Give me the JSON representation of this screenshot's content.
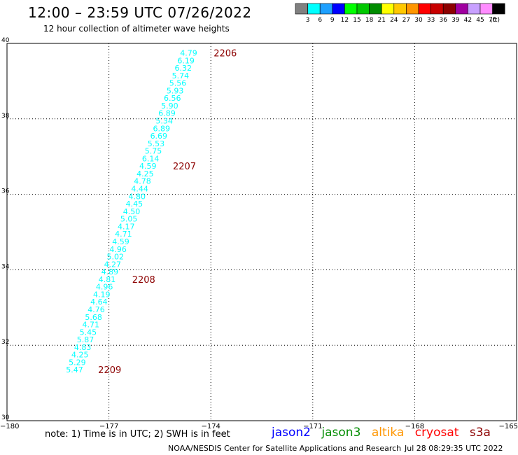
{
  "header": {
    "title": "12:00 – 23:59 UTC 07/26/2022",
    "subtitle": "12 hour collection of altimeter wave heights"
  },
  "colorbar": {
    "unit_label": "(ft)",
    "bins": [
      {
        "label": "3",
        "color": "#808080"
      },
      {
        "label": "6",
        "color": "#00ffff"
      },
      {
        "label": "9",
        "color": "#1ea0ff"
      },
      {
        "label": "12",
        "color": "#0000ff"
      },
      {
        "label": "15",
        "color": "#00ff00"
      },
      {
        "label": "18",
        "color": "#00c800"
      },
      {
        "label": "21",
        "color": "#008c00"
      },
      {
        "label": "24",
        "color": "#ffff00"
      },
      {
        "label": "27",
        "color": "#ffc800"
      },
      {
        "label": "30",
        "color": "#ff9600"
      },
      {
        "label": "33",
        "color": "#ff0000"
      },
      {
        "label": "36",
        "color": "#c80000"
      },
      {
        "label": "39",
        "color": "#8c0000"
      },
      {
        "label": "42",
        "color": "#a000a0"
      },
      {
        "label": "45",
        "color": "#c8a0ff"
      },
      {
        "label": "70",
        "color": "#ff8cff"
      },
      {
        "label": "",
        "color": "#000000"
      }
    ]
  },
  "chart_data": {
    "type": "scatter",
    "title": "12:00 – 23:59 UTC 07/26/2022",
    "xlim": [
      -180,
      -165
    ],
    "ylim": [
      30,
      40
    ],
    "x_ticks": [
      "-180",
      "-177",
      "-174",
      "-171",
      "-168",
      "-165"
    ],
    "y_ticks": [
      "30",
      "32",
      "34",
      "36",
      "38",
      "40"
    ],
    "grid": true,
    "point_color": "#00ffff",
    "points": [
      {
        "lon": -174.4,
        "lat": 39.75,
        "label": "4.79"
      },
      {
        "lon": -174.48,
        "lat": 39.55,
        "label": "6.19"
      },
      {
        "lon": -174.56,
        "lat": 39.35,
        "label": "6.32"
      },
      {
        "lon": -174.64,
        "lat": 39.15,
        "label": "5.74"
      },
      {
        "lon": -174.72,
        "lat": 38.95,
        "label": "5.56"
      },
      {
        "lon": -174.8,
        "lat": 38.75,
        "label": "5.93"
      },
      {
        "lon": -174.88,
        "lat": 38.55,
        "label": "6.56"
      },
      {
        "lon": -174.96,
        "lat": 38.35,
        "label": "5.90"
      },
      {
        "lon": -175.04,
        "lat": 38.15,
        "label": "6.89"
      },
      {
        "lon": -175.12,
        "lat": 37.95,
        "label": "5.34"
      },
      {
        "lon": -175.2,
        "lat": 37.75,
        "label": "6.89"
      },
      {
        "lon": -175.28,
        "lat": 37.55,
        "label": "6.69"
      },
      {
        "lon": -175.36,
        "lat": 37.35,
        "label": "5.53"
      },
      {
        "lon": -175.44,
        "lat": 37.15,
        "label": "5.75"
      },
      {
        "lon": -175.52,
        "lat": 36.95,
        "label": "6.14"
      },
      {
        "lon": -175.6,
        "lat": 36.75,
        "label": "4.59"
      },
      {
        "lon": -175.68,
        "lat": 36.55,
        "label": "4.25"
      },
      {
        "lon": -175.76,
        "lat": 36.35,
        "label": "4.78"
      },
      {
        "lon": -175.84,
        "lat": 36.15,
        "label": "4.44"
      },
      {
        "lon": -175.92,
        "lat": 35.95,
        "label": "4.80"
      },
      {
        "lon": -176.0,
        "lat": 35.75,
        "label": "4.45"
      },
      {
        "lon": -176.08,
        "lat": 35.55,
        "label": "4.50"
      },
      {
        "lon": -176.16,
        "lat": 35.35,
        "label": "5.05"
      },
      {
        "lon": -176.24,
        "lat": 35.15,
        "label": "4.17"
      },
      {
        "lon": -176.32,
        "lat": 34.95,
        "label": "4.71"
      },
      {
        "lon": -176.4,
        "lat": 34.75,
        "label": "4.59"
      },
      {
        "lon": -176.48,
        "lat": 34.55,
        "label": "4.96"
      },
      {
        "lon": -176.56,
        "lat": 34.35,
        "label": "5.02"
      },
      {
        "lon": -176.64,
        "lat": 34.15,
        "label": "4.27"
      },
      {
        "lon": -176.72,
        "lat": 33.95,
        "label": "4.89"
      },
      {
        "lon": -176.8,
        "lat": 33.75,
        "label": "4.81"
      },
      {
        "lon": -176.88,
        "lat": 33.55,
        "label": "4.96"
      },
      {
        "lon": -176.96,
        "lat": 33.35,
        "label": "4.19"
      },
      {
        "lon": -177.04,
        "lat": 33.15,
        "label": "4.64"
      },
      {
        "lon": -177.12,
        "lat": 32.95,
        "label": "4.76"
      },
      {
        "lon": -177.2,
        "lat": 32.75,
        "label": "5.68"
      },
      {
        "lon": -177.28,
        "lat": 32.55,
        "label": "4.71"
      },
      {
        "lon": -177.36,
        "lat": 32.35,
        "label": "5.45"
      },
      {
        "lon": -177.44,
        "lat": 32.15,
        "label": "5.87"
      },
      {
        "lon": -177.52,
        "lat": 31.95,
        "label": "4.83"
      },
      {
        "lon": -177.6,
        "lat": 31.75,
        "label": "4.25"
      },
      {
        "lon": -177.68,
        "lat": 31.55,
        "label": "5.29"
      },
      {
        "lon": -177.76,
        "lat": 31.35,
        "label": "5.47"
      }
    ],
    "time_annotations": [
      {
        "lon": -174.0,
        "lat": 39.75,
        "label": "2206"
      },
      {
        "lon": -175.2,
        "lat": 36.75,
        "label": "2207"
      },
      {
        "lon": -176.4,
        "lat": 33.75,
        "label": "2208"
      },
      {
        "lon": -177.4,
        "lat": 31.35,
        "label": "2209"
      }
    ]
  },
  "footer": {
    "note": "note:  1) Time is in UTC;  2) SWH is in feet",
    "satellites": [
      {
        "name": "jason2",
        "color": "#0000ff"
      },
      {
        "name": "jason3",
        "color": "#008c00"
      },
      {
        "name": "altika",
        "color": "#ff9600"
      },
      {
        "name": "cryosat",
        "color": "#ff0000"
      },
      {
        "name": "s3a",
        "color": "#8c0000"
      }
    ],
    "credit": "NOAA/NESDIS Center for Satellite Applications and Research",
    "generated": "Jul 28 08:29:35 UTC 2022"
  }
}
